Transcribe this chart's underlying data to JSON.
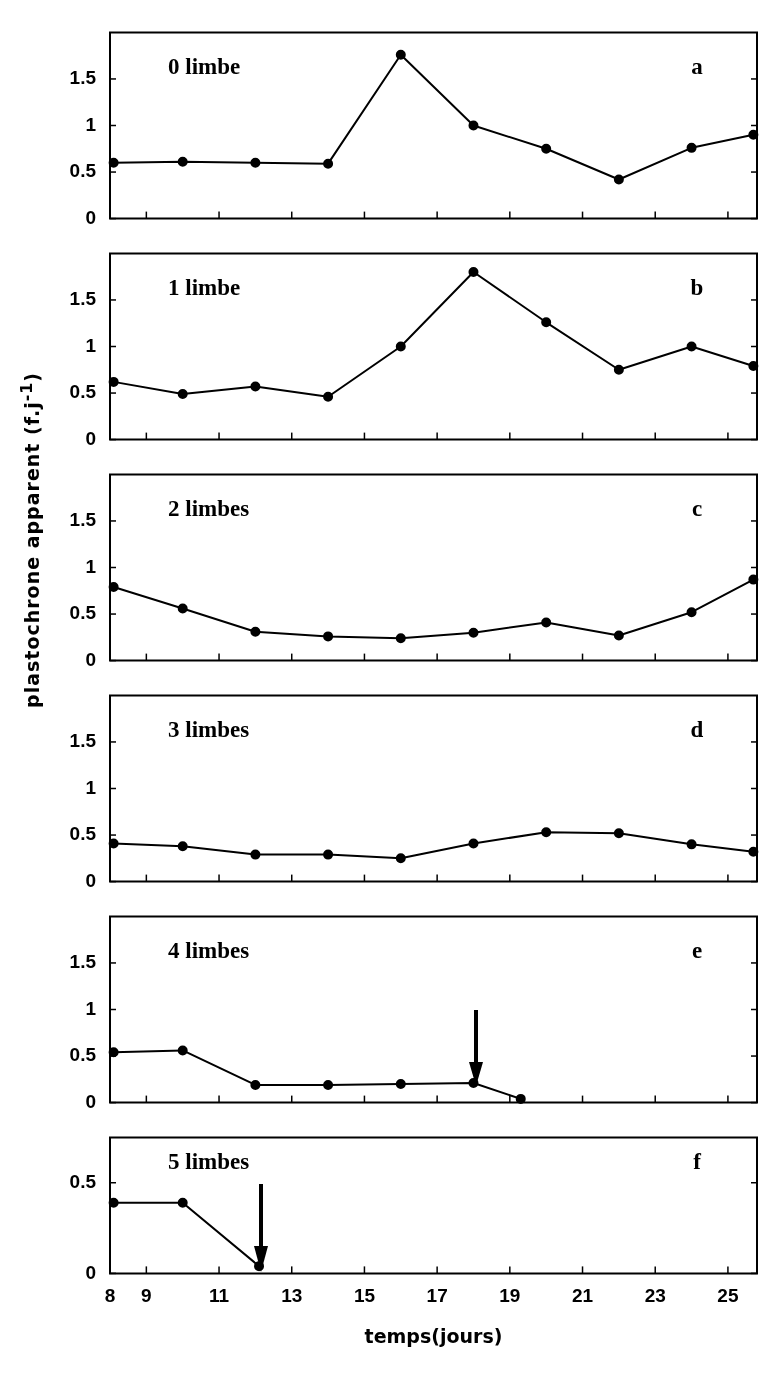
{
  "chart_data": [
    {
      "type": "line",
      "title": "0 limbe",
      "annotations": [
        "a"
      ],
      "x": [
        8.1,
        10,
        12,
        14,
        16,
        18,
        20,
        22,
        24,
        25.7
      ],
      "values": [
        0.6,
        0.61,
        0.6,
        0.59,
        1.76,
        1.0,
        0.75,
        0.42,
        0.76,
        0.9
      ],
      "color": "#000000",
      "marker": "circle",
      "xlim": [
        8,
        25.8
      ],
      "xticks": [
        8,
        9,
        11,
        13,
        15,
        17,
        19,
        21,
        23,
        25
      ],
      "ylim": [
        0,
        2
      ],
      "yticks": [
        0,
        0.5,
        1,
        1.5
      ],
      "tick_labels": "y"
    },
    {
      "type": "line",
      "title": "1 limbe",
      "annotations": [
        "b"
      ],
      "x": [
        8.1,
        10,
        12,
        14,
        16,
        18,
        20,
        22,
        24,
        25.7
      ],
      "values": [
        0.62,
        0.49,
        0.57,
        0.46,
        1.0,
        1.8,
        1.26,
        0.75,
        1.0,
        0.79
      ],
      "color": "#000000",
      "marker": "circle",
      "xlim": [
        8,
        25.8
      ],
      "xticks": [
        8,
        9,
        11,
        13,
        15,
        17,
        19,
        21,
        23,
        25
      ],
      "ylim": [
        0,
        2
      ],
      "yticks": [
        0,
        0.5,
        1,
        1.5
      ],
      "tick_labels": "y"
    },
    {
      "type": "line",
      "title": "2 limbes",
      "annotations": [
        "c"
      ],
      "ylabel": "plastochrone apparent (f.j$^{-1}$)",
      "x": [
        8.1,
        10,
        12,
        14,
        16,
        18,
        20,
        22,
        24,
        25.7
      ],
      "values": [
        0.79,
        0.56,
        0.31,
        0.26,
        0.24,
        0.3,
        0.41,
        0.27,
        0.52,
        0.87
      ],
      "color": "#000000",
      "marker": "circle",
      "xlim": [
        8,
        25.8
      ],
      "xticks": [
        8,
        9,
        11,
        13,
        15,
        17,
        19,
        21,
        23,
        25
      ],
      "ylim": [
        0,
        2
      ],
      "yticks": [
        0,
        0.5,
        1,
        1.5
      ],
      "tick_labels": "y"
    },
    {
      "type": "line",
      "title": "3 limbes",
      "annotations": [
        "d"
      ],
      "x": [
        8.1,
        10,
        12,
        14,
        16,
        18,
        20,
        22,
        24,
        25.7
      ],
      "values": [
        0.41,
        0.38,
        0.29,
        0.29,
        0.25,
        0.41,
        0.53,
        0.52,
        0.4,
        0.32
      ],
      "color": "#000000",
      "marker": "circle",
      "xlim": [
        8,
        25.8
      ],
      "xticks": [
        8,
        9,
        11,
        13,
        15,
        17,
        19,
        21,
        23,
        25
      ],
      "ylim": [
        0,
        2
      ],
      "yticks": [
        0,
        0.5,
        1,
        1.5
      ],
      "tick_labels": "y"
    },
    {
      "type": "line",
      "title": "4 limbes",
      "annotations": [
        "e"
      ],
      "x": [
        8.1,
        10,
        12,
        14,
        16,
        18,
        19.3
      ],
      "values": [
        0.54,
        0.56,
        0.19,
        0.19,
        0.2,
        0.21,
        0.04
      ],
      "color": "#000000",
      "marker": "circle",
      "xlim": [
        8,
        25.8
      ],
      "xticks": [
        8,
        9,
        11,
        13,
        15,
        17,
        19,
        21,
        23,
        25
      ],
      "ylim": [
        0,
        2
      ],
      "yticks": [
        0,
        0.5,
        1,
        1.5
      ],
      "tick_labels": "y"
    },
    {
      "type": "line",
      "title": "5 limbes",
      "annotations": [
        "f"
      ],
      "xlabel": "temps(jours)",
      "x": [
        8.1,
        10,
        12.1
      ],
      "values": [
        0.39,
        0.39,
        0.04
      ],
      "color": "#000000",
      "marker": "circle",
      "xlim": [
        8,
        25.8
      ],
      "xticks": [
        8,
        9,
        11,
        13,
        15,
        17,
        19,
        21,
        23,
        25
      ],
      "ylim": [
        0,
        0.75
      ],
      "yticks": [
        0,
        0.5
      ]
    }
  ]
}
